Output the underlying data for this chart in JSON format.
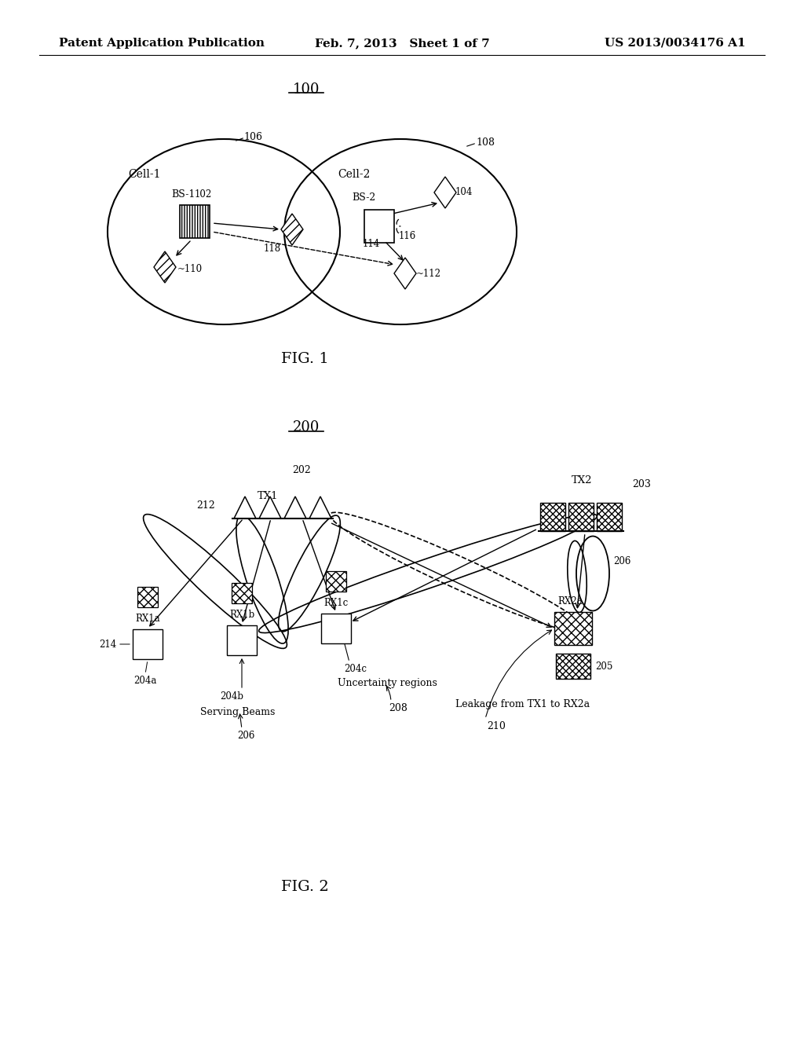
{
  "background_color": "#ffffff",
  "header": {
    "left": "Patent Application Publication",
    "center": "Feb. 7, 2013   Sheet 1 of 7",
    "right": "US 2013/0034176 A1",
    "font_size": 11
  }
}
